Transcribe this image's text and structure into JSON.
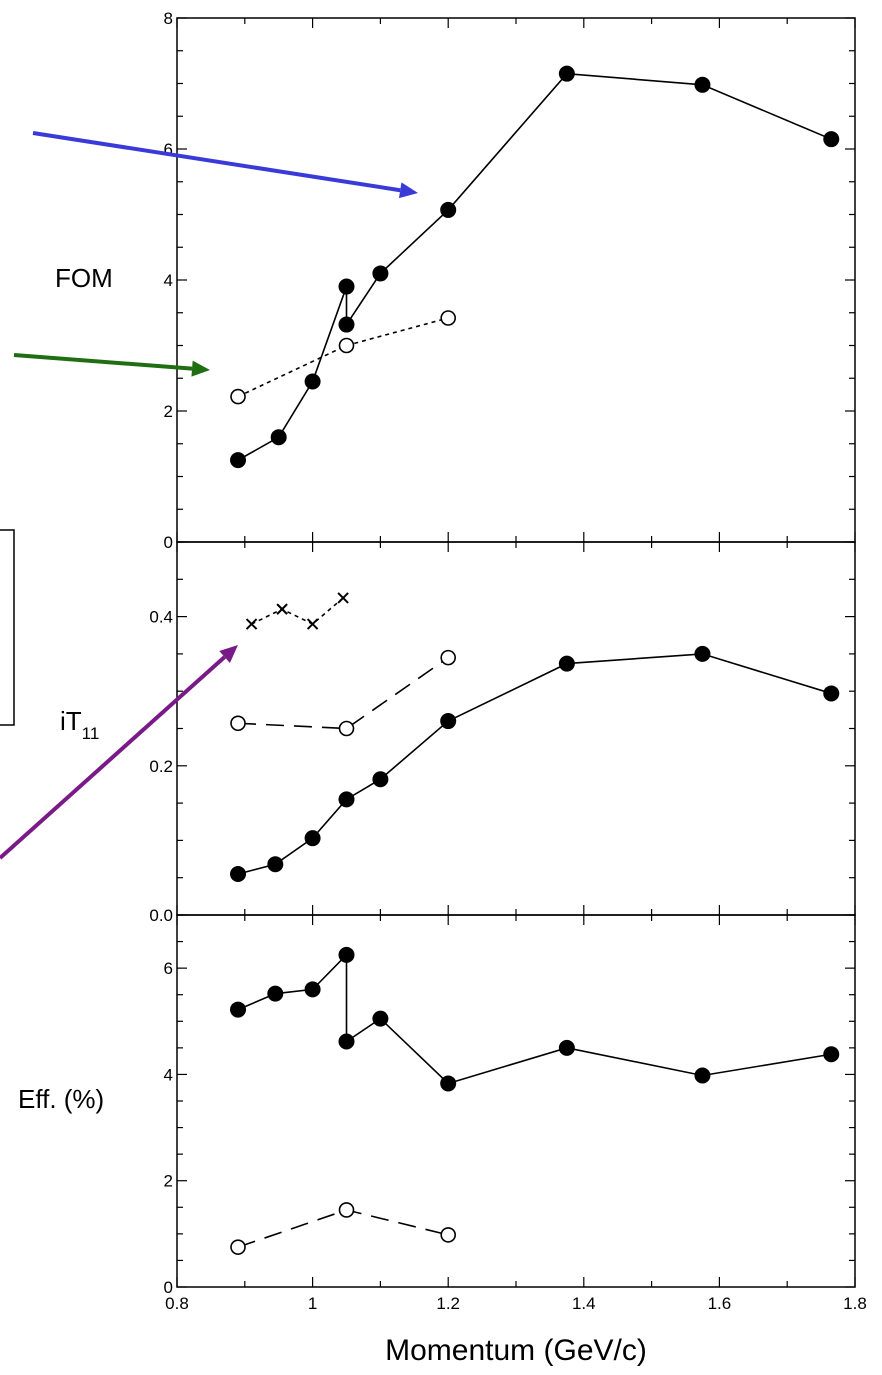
{
  "chart_data": [
    {
      "type": "line",
      "ylabel": "FOM",
      "xlim": [
        0.8,
        1.8
      ],
      "ylim": [
        0,
        8
      ],
      "yticks": [
        "0",
        "2",
        "4",
        "6",
        "8"
      ],
      "series": [
        {
          "style": "filled-circle-solid",
          "x": [
            0.89,
            0.95,
            1.0,
            1.05,
            1.05,
            1.1,
            1.2,
            1.375,
            1.575,
            1.765
          ],
          "y": [
            1.25,
            1.6,
            2.45,
            3.9,
            3.32,
            4.1,
            5.07,
            7.15,
            6.98,
            6.15
          ]
        },
        {
          "style": "open-circle-dotted",
          "x": [
            0.89,
            1.05,
            1.2
          ],
          "y": [
            2.22,
            3.0,
            3.42
          ]
        }
      ]
    },
    {
      "type": "line",
      "ylabel": "iT",
      "ylabel_sub": "11",
      "xlim": [
        0.8,
        1.8
      ],
      "ylim": [
        0.0,
        0.5
      ],
      "yticks": [
        "0.0",
        "0.2",
        "0.4"
      ],
      "series": [
        {
          "style": "filled-circle-solid",
          "x": [
            0.89,
            0.945,
            1.0,
            1.05,
            1.1,
            1.2,
            1.375,
            1.575,
            1.765
          ],
          "y": [
            0.055,
            0.068,
            0.103,
            0.155,
            0.182,
            0.26,
            0.337,
            0.35,
            0.297
          ]
        },
        {
          "style": "open-circle-dashed",
          "x": [
            0.89,
            1.05,
            1.2
          ],
          "y": [
            0.257,
            0.25,
            0.345
          ]
        },
        {
          "style": "cross-dotted",
          "x": [
            0.91,
            0.955,
            1.0,
            1.045
          ],
          "y": [
            0.39,
            0.41,
            0.39,
            0.425
          ]
        }
      ]
    },
    {
      "type": "line",
      "ylabel": "Eff. (%)",
      "xlabel": "Momentum  (GeV/c)",
      "xlim": [
        0.8,
        1.8
      ],
      "ylim": [
        0,
        7
      ],
      "yticks": [
        "0",
        "2",
        "4",
        "6"
      ],
      "xticks": [
        "0.8",
        "1",
        "1.2",
        "1.4",
        "1.6",
        "1.8"
      ],
      "series": [
        {
          "style": "filled-circle-solid",
          "x": [
            0.89,
            0.945,
            1.0,
            1.05,
            1.05,
            1.1,
            1.2,
            1.375,
            1.575,
            1.765
          ],
          "y": [
            5.22,
            5.52,
            5.6,
            6.25,
            4.62,
            5.05,
            3.83,
            4.5,
            3.98,
            4.38
          ]
        },
        {
          "style": "open-circle-dashed",
          "x": [
            0.89,
            1.05,
            1.2
          ],
          "y": [
            0.75,
            1.45,
            0.98
          ]
        }
      ]
    }
  ],
  "annotations": {
    "arrows": [
      {
        "name": "blue-arrow",
        "color": "#3a3ad8"
      },
      {
        "name": "green-arrow",
        "color": "#1f6e12"
      },
      {
        "name": "purple-arrow",
        "color": "#7a1a88"
      }
    ]
  }
}
